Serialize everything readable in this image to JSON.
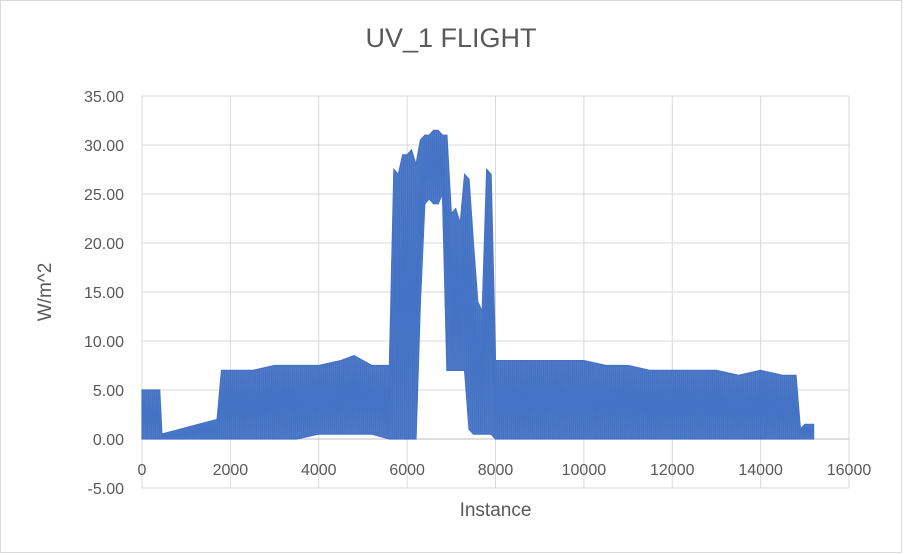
{
  "chart_data": {
    "type": "line",
    "title": "UV_1 FLIGHT",
    "xlabel": "Instance",
    "ylabel": "W/m^2",
    "xlim": [
      0,
      16000
    ],
    "ylim": [
      -5,
      35
    ],
    "x_ticks": [
      0,
      2000,
      4000,
      6000,
      8000,
      10000,
      12000,
      14000,
      16000
    ],
    "x_tick_labels": [
      "0",
      "2000",
      "4000",
      "6000",
      "8000",
      "10000",
      "12000",
      "14000",
      "16000"
    ],
    "y_ticks": [
      -5,
      0,
      5,
      10,
      15,
      20,
      25,
      30,
      35
    ],
    "y_tick_labels": [
      "-5.00",
      "0.00",
      "5.00",
      "10.00",
      "15.00",
      "20.00",
      "25.00",
      "30.00",
      "35.00"
    ],
    "grid": true,
    "legend": "none",
    "series_color": "#4472C4",
    "envelope": {
      "x": [
        0,
        50,
        200,
        400,
        450,
        1700,
        1800,
        2000,
        2500,
        3000,
        3500,
        4000,
        4500,
        4800,
        5200,
        5600,
        5700,
        5800,
        5900,
        6000,
        6100,
        6200,
        6300,
        6400,
        6500,
        6600,
        6700,
        6800,
        6900,
        7000,
        7100,
        7200,
        7300,
        7400,
        7500,
        7600,
        7700,
        7800,
        7900,
        8000,
        8500,
        9000,
        9500,
        10000,
        10500,
        11000,
        11500,
        12000,
        12500,
        13000,
        13500,
        14000,
        14500,
        14800,
        14900,
        15000,
        15200
      ],
      "high": [
        5.0,
        5.0,
        5.0,
        5.0,
        0.5,
        2.0,
        7.0,
        7.0,
        7.0,
        7.5,
        7.5,
        7.5,
        8.0,
        8.5,
        7.5,
        7.5,
        27.5,
        27.0,
        29.0,
        29.0,
        29.5,
        28.0,
        30.5,
        31.0,
        31.0,
        31.5,
        31.5,
        31.0,
        31.0,
        23.0,
        23.5,
        22.0,
        27.0,
        26.5,
        20.0,
        14.0,
        13.0,
        27.5,
        27.0,
        8.0,
        8.0,
        8.0,
        8.0,
        8.0,
        7.5,
        7.5,
        7.0,
        7.0,
        7.0,
        7.0,
        6.5,
        7.0,
        6.5,
        6.5,
        1.0,
        1.5,
        1.5
      ],
      "low": [
        0.0,
        0.0,
        0.0,
        0.0,
        0.0,
        0.0,
        0.0,
        0.0,
        0.0,
        0.0,
        0.0,
        0.5,
        0.5,
        0.5,
        0.5,
        0.0,
        0.0,
        0.0,
        0.0,
        0.0,
        0.0,
        0.0,
        14.0,
        24.0,
        24.5,
        24.0,
        24.0,
        25.0,
        7.0,
        7.0,
        7.0,
        7.0,
        7.0,
        1.0,
        0.5,
        0.5,
        0.5,
        0.5,
        0.5,
        0.0,
        0.0,
        0.0,
        0.0,
        0.0,
        0.0,
        0.0,
        0.0,
        0.0,
        0.0,
        0.0,
        0.0,
        0.0,
        0.0,
        0.0,
        0.0,
        0.0,
        0.0
      ]
    }
  }
}
